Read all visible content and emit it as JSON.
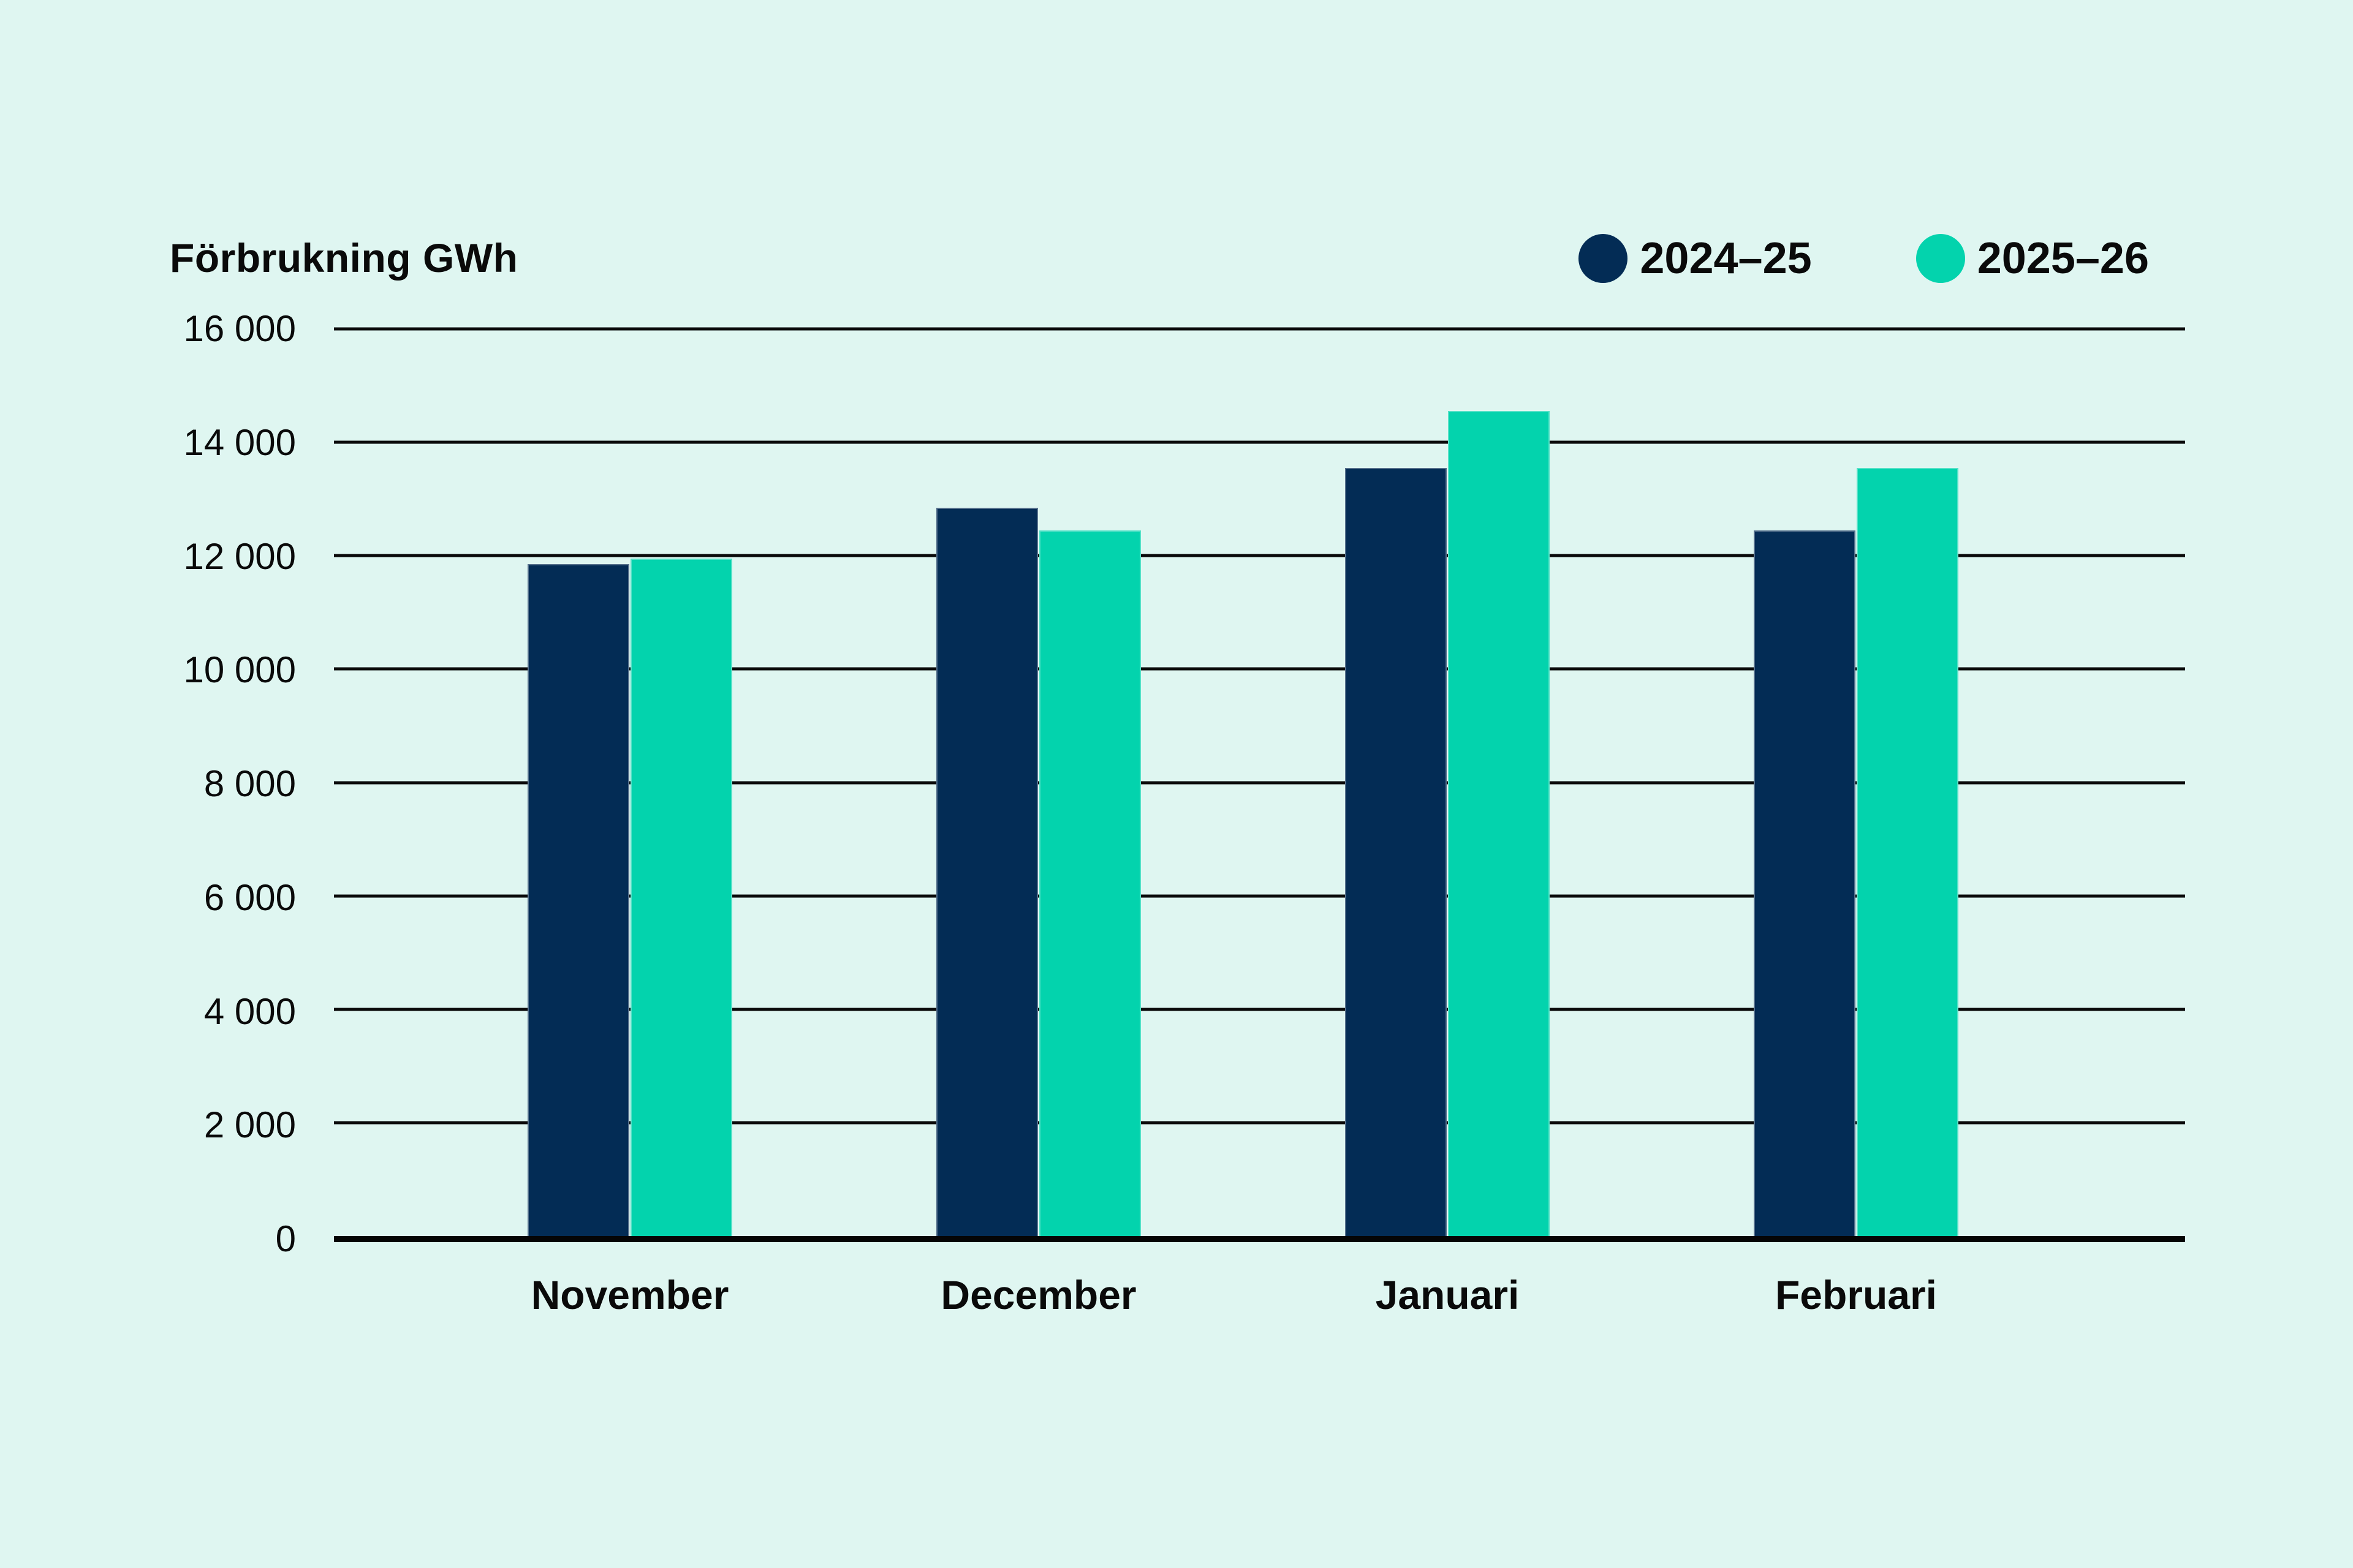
{
  "page": {
    "background_color": "#DFF6F1",
    "text_color": "#0A0A0A"
  },
  "chart_data": {
    "type": "bar",
    "title": "Förbrukning GWh",
    "categories": [
      "November",
      "December",
      "Januari",
      "Februari"
    ],
    "series": [
      {
        "name": "2024–25",
        "color": "#032C55",
        "values": [
          11850,
          12850,
          13550,
          12450
        ]
      },
      {
        "name": "2025–26",
        "color": "#03D3AD",
        "values": [
          11950,
          12450,
          14550,
          13550
        ]
      }
    ],
    "xlabel": "",
    "ylabel": "Förbrukning GWh",
    "ylim": [
      0,
      16000
    ],
    "ytick_step": 2000,
    "y_ticks": [
      "16 000",
      "14 000",
      "12 000",
      "10 000",
      "8 000",
      "6 000",
      "4 000",
      "2 000",
      "0"
    ],
    "grid": "horizontal",
    "gridline_color": "#0A0A0A",
    "axis_color": "#050505",
    "legend_position": "top-right"
  }
}
